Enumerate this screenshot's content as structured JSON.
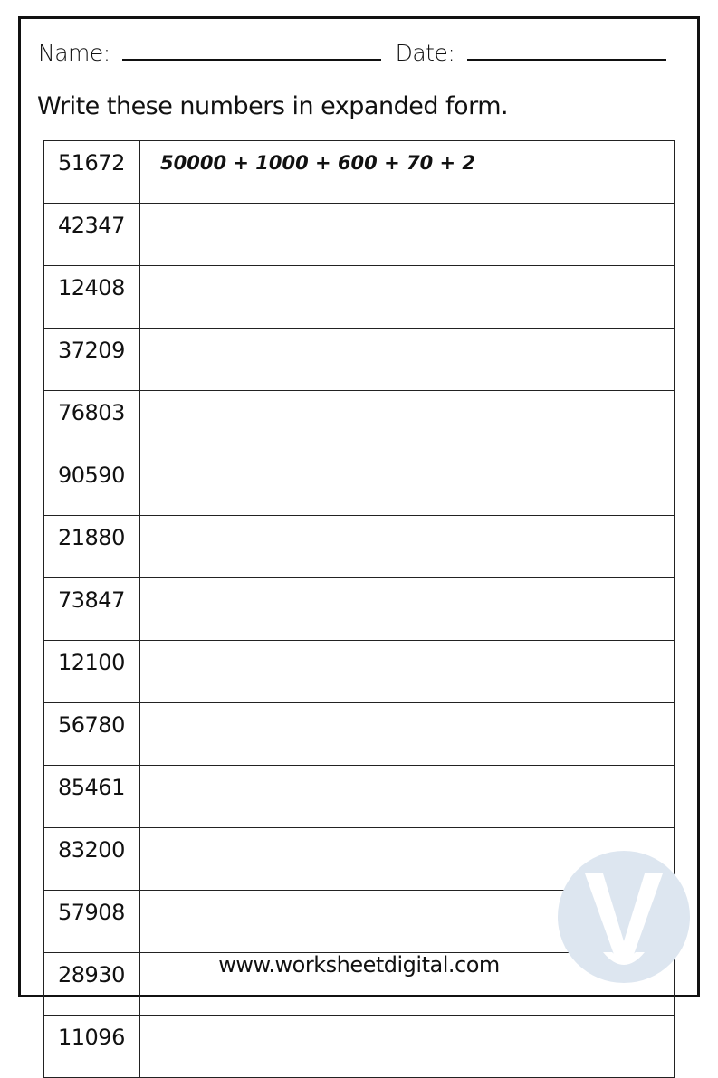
{
  "header": {
    "name_label": "Name:",
    "date_label": "Date:"
  },
  "instruction": "Write these numbers in expanded form.",
  "rows": [
    {
      "number": "51672",
      "answer": "50000 + 1000 + 600 + 70 + 2"
    },
    {
      "number": "42347",
      "answer": ""
    },
    {
      "number": "12408",
      "answer": ""
    },
    {
      "number": "37209",
      "answer": ""
    },
    {
      "number": "76803",
      "answer": ""
    },
    {
      "number": "90590",
      "answer": ""
    },
    {
      "number": "21880",
      "answer": ""
    },
    {
      "number": "73847",
      "answer": ""
    },
    {
      "number": "12100",
      "answer": ""
    },
    {
      "number": "56780",
      "answer": ""
    },
    {
      "number": "85461",
      "answer": ""
    },
    {
      "number": "83200",
      "answer": ""
    },
    {
      "number": "57908",
      "answer": ""
    },
    {
      "number": "28930",
      "answer": ""
    },
    {
      "number": "11096",
      "answer": ""
    }
  ],
  "footer": "www.worksheetdigital.com",
  "watermark": {
    "icon": "worksheetdigital-logo",
    "letter": "W",
    "color": "#dde6f0"
  }
}
